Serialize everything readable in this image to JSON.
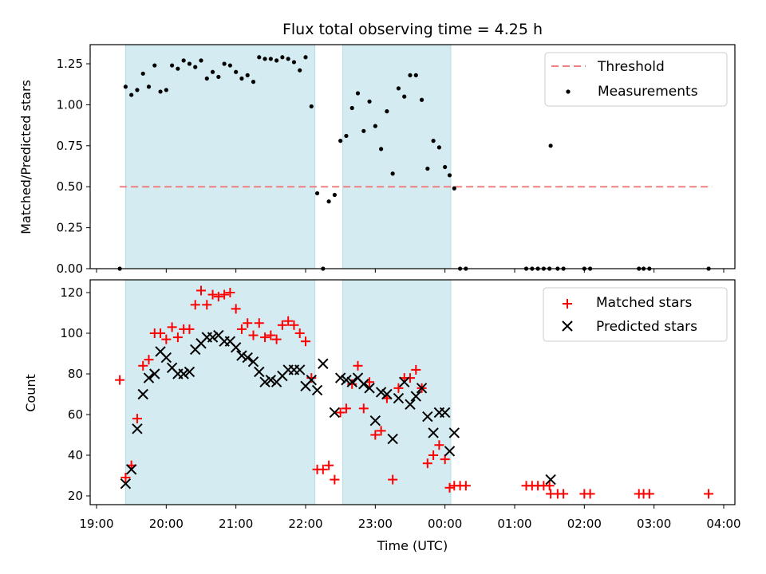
{
  "chart_data": [
    {
      "type": "scatter",
      "title": "Flux total observing time = 4.25 h",
      "xlabel": "",
      "ylabel": "Matched/Predicted stars",
      "ylim": [
        0,
        1.375
      ],
      "xlim": [
        "19:00",
        "04:00"
      ],
      "yticks": [
        "0.00",
        "0.25",
        "0.50",
        "0.75",
        "1.00",
        "1.25"
      ],
      "shaded_intervals": [
        [
          "19:25",
          "22:08"
        ],
        [
          "22:32",
          "00:05"
        ]
      ],
      "shade_color": "#d3ebf1",
      "legend_position": "top-right",
      "threshold": {
        "name": "Threshold",
        "value": 0.5,
        "x_range": [
          "19:20",
          "03:50"
        ],
        "color": "#f08080"
      },
      "series": [
        {
          "name": "Measurements",
          "color": "#000000",
          "points": [
            [
              "19:20",
              0.0
            ],
            [
              "19:25",
              1.11
            ],
            [
              "19:30",
              1.06
            ],
            [
              "19:35",
              1.09
            ],
            [
              "19:40",
              1.19
            ],
            [
              "19:45",
              1.11
            ],
            [
              "19:50",
              1.24
            ],
            [
              "19:55",
              1.08
            ],
            [
              "20:00",
              1.09
            ],
            [
              "20:05",
              1.24
            ],
            [
              "20:10",
              1.22
            ],
            [
              "20:15",
              1.27
            ],
            [
              "20:20",
              1.25
            ],
            [
              "20:25",
              1.23
            ],
            [
              "20:30",
              1.27
            ],
            [
              "20:35",
              1.16
            ],
            [
              "20:40",
              1.2
            ],
            [
              "20:45",
              1.17
            ],
            [
              "20:50",
              1.25
            ],
            [
              "20:55",
              1.24
            ],
            [
              "21:00",
              1.2
            ],
            [
              "21:05",
              1.16
            ],
            [
              "21:10",
              1.18
            ],
            [
              "21:15",
              1.14
            ],
            [
              "21:20",
              1.29
            ],
            [
              "21:25",
              1.28
            ],
            [
              "21:30",
              1.28
            ],
            [
              "21:35",
              1.27
            ],
            [
              "21:40",
              1.29
            ],
            [
              "21:45",
              1.28
            ],
            [
              "21:50",
              1.26
            ],
            [
              "21:55",
              1.21
            ],
            [
              "22:00",
              1.29
            ],
            [
              "22:05",
              0.99
            ],
            [
              "22:10",
              0.46
            ],
            [
              "22:15",
              0.0
            ],
            [
              "22:20",
              0.41
            ],
            [
              "22:25",
              0.45
            ],
            [
              "22:30",
              0.78
            ],
            [
              "22:35",
              0.81
            ],
            [
              "22:40",
              0.98
            ],
            [
              "22:45",
              1.07
            ],
            [
              "22:50",
              0.84
            ],
            [
              "22:55",
              1.02
            ],
            [
              "23:00",
              0.87
            ],
            [
              "23:05",
              0.73
            ],
            [
              "23:10",
              0.96
            ],
            [
              "23:15",
              0.58
            ],
            [
              "23:20",
              1.1
            ],
            [
              "23:25",
              1.05
            ],
            [
              "23:30",
              1.18
            ],
            [
              "23:35",
              1.18
            ],
            [
              "23:40",
              1.03
            ],
            [
              "23:45",
              0.61
            ],
            [
              "23:50",
              0.78
            ],
            [
              "23:55",
              0.74
            ],
            [
              "00:00",
              0.62
            ],
            [
              "00:04",
              0.57
            ],
            [
              "00:08",
              0.49
            ],
            [
              "00:13",
              0.0
            ],
            [
              "00:18",
              0.0
            ],
            [
              "01:10",
              0.0
            ],
            [
              "01:15",
              0.0
            ],
            [
              "01:20",
              0.0
            ],
            [
              "01:25",
              0.0
            ],
            [
              "01:30",
              0.0
            ],
            [
              "01:31",
              0.75
            ],
            [
              "01:37",
              0.0
            ],
            [
              "01:42",
              0.0
            ],
            [
              "02:00",
              0.0
            ],
            [
              "02:05",
              0.0
            ],
            [
              "02:47",
              0.0
            ],
            [
              "02:51",
              0.0
            ],
            [
              "02:56",
              0.0
            ],
            [
              "03:47",
              0.0
            ]
          ]
        }
      ]
    },
    {
      "type": "scatter",
      "title": "",
      "xlabel": "Time (UTC)",
      "ylabel": "Count",
      "ylim": [
        15,
        127
      ],
      "xlim": [
        "19:00",
        "04:00"
      ],
      "xticks": [
        "19:00",
        "20:00",
        "21:00",
        "22:00",
        "23:00",
        "00:00",
        "01:00",
        "02:00",
        "03:00",
        "04:00"
      ],
      "yticks": [
        "20",
        "40",
        "60",
        "80",
        "100",
        "120"
      ],
      "shaded_intervals": [
        [
          "19:25",
          "22:08"
        ],
        [
          "22:32",
          "00:05"
        ]
      ],
      "shade_color": "#d3ebf1",
      "legend_position": "top-right",
      "series": [
        {
          "name": "Matched stars",
          "marker": "plus",
          "color": "#ff0000",
          "points": [
            [
              "19:20",
              77
            ],
            [
              "19:25",
              29
            ],
            [
              "19:30",
              35
            ],
            [
              "19:35",
              58
            ],
            [
              "19:40",
              84
            ],
            [
              "19:45",
              87
            ],
            [
              "19:50",
              100
            ],
            [
              "19:55",
              100
            ],
            [
              "20:00",
              97
            ],
            [
              "20:05",
              103
            ],
            [
              "20:10",
              98
            ],
            [
              "20:15",
              102
            ],
            [
              "20:20",
              102
            ],
            [
              "20:25",
              114
            ],
            [
              "20:30",
              121
            ],
            [
              "20:35",
              114
            ],
            [
              "20:40",
              119
            ],
            [
              "20:45",
              118
            ],
            [
              "20:50",
              119
            ],
            [
              "20:55",
              120
            ],
            [
              "21:00",
              112
            ],
            [
              "21:05",
              102
            ],
            [
              "21:10",
              105
            ],
            [
              "21:15",
              99
            ],
            [
              "21:20",
              105
            ],
            [
              "21:25",
              98
            ],
            [
              "21:30",
              99
            ],
            [
              "21:35",
              97
            ],
            [
              "21:40",
              104
            ],
            [
              "21:45",
              106
            ],
            [
              "21:50",
              104
            ],
            [
              "21:55",
              100
            ],
            [
              "22:00",
              96
            ],
            [
              "22:05",
              78
            ],
            [
              "22:10",
              33
            ],
            [
              "22:15",
              33
            ],
            [
              "22:20",
              35
            ],
            [
              "22:25",
              28
            ],
            [
              "22:30",
              61
            ],
            [
              "22:35",
              63
            ],
            [
              "22:40",
              75
            ],
            [
              "22:45",
              84
            ],
            [
              "22:50",
              63
            ],
            [
              "22:55",
              76
            ],
            [
              "23:00",
              50
            ],
            [
              "23:05",
              52
            ],
            [
              "23:10",
              68
            ],
            [
              "23:15",
              28
            ],
            [
              "23:20",
              73
            ],
            [
              "23:25",
              78
            ],
            [
              "23:30",
              78
            ],
            [
              "23:35",
              82
            ],
            [
              "23:40",
              73
            ],
            [
              "23:45",
              36
            ],
            [
              "23:50",
              40
            ],
            [
              "23:55",
              45
            ],
            [
              "00:00",
              38
            ],
            [
              "00:04",
              24
            ],
            [
              "00:08",
              25
            ],
            [
              "00:13",
              25
            ],
            [
              "00:18",
              25
            ],
            [
              "01:10",
              25
            ],
            [
              "01:15",
              25
            ],
            [
              "01:20",
              25
            ],
            [
              "01:25",
              25
            ],
            [
              "01:30",
              25
            ],
            [
              "01:31",
              21
            ],
            [
              "01:37",
              21
            ],
            [
              "01:42",
              21
            ],
            [
              "02:00",
              21
            ],
            [
              "02:05",
              21
            ],
            [
              "02:47",
              21
            ],
            [
              "02:51",
              21
            ],
            [
              "02:56",
              21
            ],
            [
              "03:47",
              21
            ]
          ]
        },
        {
          "name": "Predicted stars",
          "marker": "x",
          "color": "#000000",
          "points": [
            [
              "19:25",
              26
            ],
            [
              "19:30",
              33
            ],
            [
              "19:35",
              53
            ],
            [
              "19:40",
              70
            ],
            [
              "19:45",
              78
            ],
            [
              "19:50",
              80
            ],
            [
              "19:55",
              91
            ],
            [
              "20:00",
              88
            ],
            [
              "20:05",
              83
            ],
            [
              "20:10",
              80
            ],
            [
              "20:15",
              80
            ],
            [
              "20:20",
              81
            ],
            [
              "20:25",
              92
            ],
            [
              "20:30",
              95
            ],
            [
              "20:35",
              98
            ],
            [
              "20:40",
              98
            ],
            [
              "20:45",
              99
            ],
            [
              "20:50",
              96
            ],
            [
              "20:55",
              96
            ],
            [
              "21:00",
              93
            ],
            [
              "21:05",
              89
            ],
            [
              "21:10",
              88
            ],
            [
              "21:15",
              86
            ],
            [
              "21:20",
              81
            ],
            [
              "21:25",
              76
            ],
            [
              "21:30",
              77
            ],
            [
              "21:35",
              76
            ],
            [
              "21:40",
              79
            ],
            [
              "21:45",
              82
            ],
            [
              "21:50",
              82
            ],
            [
              "21:55",
              82
            ],
            [
              "22:00",
              74
            ],
            [
              "22:05",
              77
            ],
            [
              "22:10",
              72
            ],
            [
              "22:15",
              85
            ],
            [
              "22:25",
              61
            ],
            [
              "22:30",
              78
            ],
            [
              "22:35",
              77
            ],
            [
              "22:40",
              76
            ],
            [
              "22:45",
              78
            ],
            [
              "22:50",
              75
            ],
            [
              "22:55",
              73
            ],
            [
              "23:00",
              57
            ],
            [
              "23:05",
              71
            ],
            [
              "23:10",
              70
            ],
            [
              "23:15",
              48
            ],
            [
              "23:20",
              68
            ],
            [
              "23:25",
              76
            ],
            [
              "23:30",
              65
            ],
            [
              "23:35",
              69
            ],
            [
              "23:40",
              73
            ],
            [
              "23:45",
              59
            ],
            [
              "23:50",
              51
            ],
            [
              "23:55",
              61
            ],
            [
              "00:00",
              61
            ],
            [
              "00:04",
              42
            ],
            [
              "00:08",
              51
            ],
            [
              "01:31",
              28
            ]
          ]
        }
      ]
    }
  ]
}
